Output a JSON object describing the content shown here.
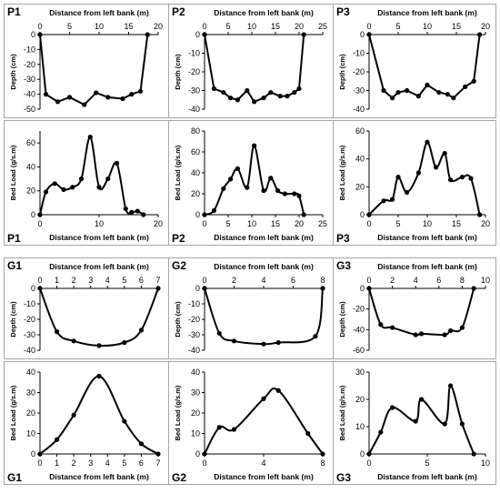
{
  "chart_data": [
    {
      "id": "P1-depth",
      "type": "line",
      "smooth": false,
      "title": "P1",
      "xlabel": "Distance from left bank (m)",
      "ylabel": "Depth (cm)",
      "xaxis": "top",
      "xlim": [
        0,
        20
      ],
      "xticks": [
        0,
        5,
        10,
        15,
        20
      ],
      "ylim": [
        -50,
        0
      ],
      "yticks": [
        0,
        -10,
        -20,
        -30,
        -40,
        -50
      ],
      "x": [
        0,
        1,
        3,
        5,
        7.5,
        9.5,
        11.5,
        14,
        15.5,
        17,
        18.2
      ],
      "y": [
        0,
        -40,
        -45,
        -42,
        -47,
        -39,
        -42,
        -43,
        -40,
        -38,
        0
      ]
    },
    {
      "id": "P2-depth",
      "type": "line",
      "smooth": false,
      "title": "P2",
      "xlabel": "Distance from left bank (m)",
      "ylabel": "Depth (cm)",
      "xaxis": "top",
      "xlim": [
        0,
        25
      ],
      "xticks": [
        0,
        5,
        10,
        15,
        20,
        25
      ],
      "ylim": [
        -40,
        0
      ],
      "yticks": [
        0,
        -10,
        -20,
        -30,
        -40
      ],
      "x": [
        0,
        2,
        4,
        5.5,
        7,
        9,
        10.5,
        12.5,
        14,
        16,
        17.5,
        19,
        20,
        21
      ],
      "y": [
        0,
        -29,
        -31,
        -34,
        -35,
        -30,
        -36,
        -34,
        -31,
        -33,
        -33,
        -31,
        -29,
        0
      ]
    },
    {
      "id": "P3-depth",
      "type": "line",
      "smooth": false,
      "title": "P3",
      "xlabel": "Distance from left bank (m)",
      "ylabel": "Depth (cm)",
      "xaxis": "top",
      "xlim": [
        0,
        20
      ],
      "xticks": [
        0,
        5,
        10,
        15,
        20
      ],
      "ylim": [
        -40,
        0
      ],
      "yticks": [
        0,
        -10,
        -20,
        -30,
        -40
      ],
      "x": [
        0,
        2.5,
        4,
        5,
        6.5,
        8.5,
        10,
        12,
        13.5,
        14.5,
        16.5,
        18,
        19
      ],
      "y": [
        0,
        -30,
        -34,
        -31,
        -30,
        -33,
        -27,
        -31,
        -32,
        -34,
        -28,
        -25,
        0
      ]
    },
    {
      "id": "P1-bedload",
      "type": "line",
      "smooth": true,
      "title": "P1",
      "xlabel": "Distance from left bank (m)",
      "ylabel": "Bed Load (g/s.m)",
      "xaxis": "bottom",
      "xlim": [
        0,
        20
      ],
      "xticks": [
        0,
        10,
        20
      ],
      "ylim": [
        0,
        70
      ],
      "yticks": [
        0,
        20,
        40,
        60
      ],
      "x": [
        0,
        1,
        2.5,
        4,
        5.5,
        7,
        8.5,
        10,
        11.5,
        13,
        14.5,
        15.5,
        16.5,
        17.5
      ],
      "y": [
        0,
        19,
        26,
        21,
        23,
        30,
        65,
        23,
        30,
        43,
        5,
        2,
        3,
        0
      ]
    },
    {
      "id": "P2-bedload",
      "type": "line",
      "smooth": true,
      "title": "P2",
      "xlabel": "Distance from left bank (m)",
      "ylabel": "Bed Load (g/s.m)",
      "xaxis": "bottom",
      "xlim": [
        0,
        25
      ],
      "xticks": [
        0,
        5,
        10,
        15,
        20,
        25
      ],
      "ylim": [
        0,
        80
      ],
      "yticks": [
        0,
        20,
        40,
        60,
        80
      ],
      "x": [
        0,
        2,
        4,
        5.5,
        7,
        9,
        10.5,
        12.5,
        14,
        15.5,
        17,
        19,
        20,
        21
      ],
      "y": [
        0,
        4,
        25,
        34,
        44,
        26,
        66,
        23,
        35,
        23,
        20,
        20,
        18,
        0
      ]
    },
    {
      "id": "P3-bedload",
      "type": "line",
      "smooth": true,
      "title": "P3",
      "xlabel": "Distance from left bank (m)",
      "ylabel": "Bed Load (g/s.m)",
      "xaxis": "bottom",
      "xlim": [
        0,
        20
      ],
      "xticks": [
        0,
        5,
        10,
        15,
        20
      ],
      "ylim": [
        0,
        60
      ],
      "yticks": [
        0,
        20,
        40,
        60
      ],
      "x": [
        0,
        2.5,
        4,
        5,
        6.5,
        8.5,
        10,
        11.5,
        13,
        14,
        16,
        17.5,
        19
      ],
      "y": [
        0,
        10,
        11,
        27,
        16,
        30,
        52,
        34,
        44,
        25,
        27,
        26,
        0
      ]
    },
    {
      "id": "G1-depth",
      "type": "line",
      "smooth": true,
      "title": "G1",
      "xlabel": "Distance from left bank (m)",
      "ylabel": "Depth (cm)",
      "xaxis": "top",
      "xlim": [
        0,
        7
      ],
      "xticks": [
        0,
        1,
        2,
        3,
        4,
        5,
        6,
        7
      ],
      "ylim": [
        -40,
        0
      ],
      "yticks": [
        0,
        -10,
        -20,
        -30,
        -40
      ],
      "x": [
        0,
        1,
        2,
        3.5,
        5,
        6,
        7
      ],
      "y": [
        0,
        -28,
        -34,
        -37,
        -35,
        -27,
        0
      ]
    },
    {
      "id": "G2-depth",
      "type": "line",
      "smooth": true,
      "title": "G2",
      "xlabel": "Distance from left bank (m)",
      "ylabel": "Depth (cm)",
      "xaxis": "top",
      "xlim": [
        0,
        8
      ],
      "xticks": [
        0,
        2,
        4,
        6,
        8
      ],
      "ylim": [
        -40,
        0
      ],
      "yticks": [
        0,
        -10,
        -20,
        -30,
        -40
      ],
      "x": [
        0,
        1,
        2,
        4,
        5,
        7.5,
        8
      ],
      "y": [
        0,
        -29,
        -34,
        -36,
        -35,
        -31,
        0
      ]
    },
    {
      "id": "G3-depth",
      "type": "line",
      "smooth": true,
      "title": "G3",
      "xlabel": "Distance from left bank (m)",
      "ylabel": "Depth (cm)",
      "xaxis": "top",
      "xlim": [
        0,
        10
      ],
      "xticks": [
        0,
        2,
        4,
        6,
        8,
        10
      ],
      "ylim": [
        -60,
        0
      ],
      "yticks": [
        0,
        -20,
        -40,
        -60
      ],
      "x": [
        0,
        1,
        2,
        4,
        4.5,
        6.5,
        7,
        8,
        9
      ],
      "y": [
        0,
        -35,
        -38,
        -45,
        -44,
        -45,
        -41,
        -38,
        0
      ]
    },
    {
      "id": "G1-bedload",
      "type": "line",
      "smooth": true,
      "title": "G1",
      "xlabel": "Distance from left bank (m)",
      "ylabel": "Bed Load (g/s.m)",
      "xaxis": "bottom",
      "xlim": [
        0,
        7
      ],
      "xticks": [
        0,
        1,
        2,
        3,
        4,
        5,
        6,
        7
      ],
      "ylim": [
        0,
        40
      ],
      "yticks": [
        0,
        10,
        20,
        30,
        40
      ],
      "x": [
        0,
        1,
        2,
        3.5,
        5,
        6,
        7
      ],
      "y": [
        0,
        7,
        19,
        38,
        16,
        5,
        0
      ]
    },
    {
      "id": "G2-bedload",
      "type": "line",
      "smooth": true,
      "title": "G2",
      "xlabel": "Distance from left bank (m)",
      "ylabel": "Bed Load (g/s.m)",
      "xaxis": "bottom",
      "xlim": [
        0,
        8
      ],
      "xticks": [
        0,
        4,
        8
      ],
      "ylim": [
        0,
        40
      ],
      "yticks": [
        0,
        10,
        20,
        30,
        40
      ],
      "x": [
        0,
        1,
        2,
        4,
        5,
        7,
        8
      ],
      "y": [
        0,
        13,
        12,
        27,
        31,
        10,
        0
      ]
    },
    {
      "id": "G3-bedload",
      "type": "line",
      "smooth": true,
      "title": "G3",
      "xlabel": "Distance from left bank (m)",
      "ylabel": "Bed Load (g/s.m)",
      "xaxis": "bottom",
      "xlim": [
        0,
        10
      ],
      "xticks": [
        0,
        5,
        10
      ],
      "ylim": [
        0,
        30
      ],
      "yticks": [
        0,
        10,
        20,
        30
      ],
      "x": [
        0,
        1,
        2,
        4,
        4.5,
        6.5,
        7,
        8,
        9
      ],
      "y": [
        0,
        8,
        17,
        12,
        20,
        11,
        25,
        11,
        0
      ]
    }
  ]
}
